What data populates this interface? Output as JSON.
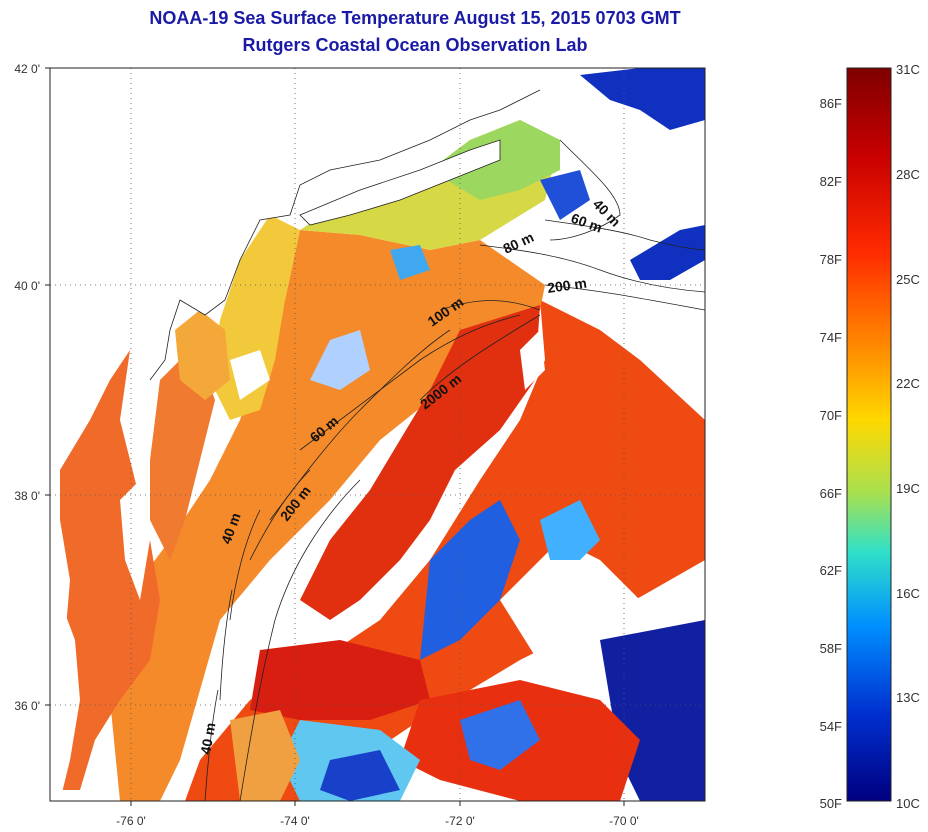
{
  "title": "NOAA-19 Sea Surface Temperature August 15, 2015 0703 GMT",
  "subtitle": "Rutgers Coastal Ocean Observation Lab",
  "map": {
    "lat_ticks": [
      "42 0'",
      "40 0'",
      "38 0'",
      "36 0'"
    ],
    "lon_ticks": [
      "-76 0'",
      "-74 0'",
      "-72 0'",
      "-70 0'"
    ],
    "contour_labels": [
      "40 m",
      "60 m",
      "80 m",
      "200 m",
      "100 m",
      "2000 m",
      "60 m",
      "200 m",
      "40 m",
      "40 m"
    ]
  },
  "colorbar": {
    "fahrenheit": [
      "86F",
      "82F",
      "78F",
      "74F",
      "70F",
      "66F",
      "62F",
      "58F",
      "54F",
      "50F"
    ],
    "celsius": [
      "31C",
      "28C",
      "25C",
      "22C",
      "19C",
      "16C",
      "13C",
      "10C"
    ],
    "colors": [
      "#7f0000",
      "#d00000",
      "#ff3000",
      "#ff8c00",
      "#ffd700",
      "#b0e040",
      "#40e0c0",
      "#00a0ff",
      "#0040e0",
      "#00008f"
    ]
  }
}
